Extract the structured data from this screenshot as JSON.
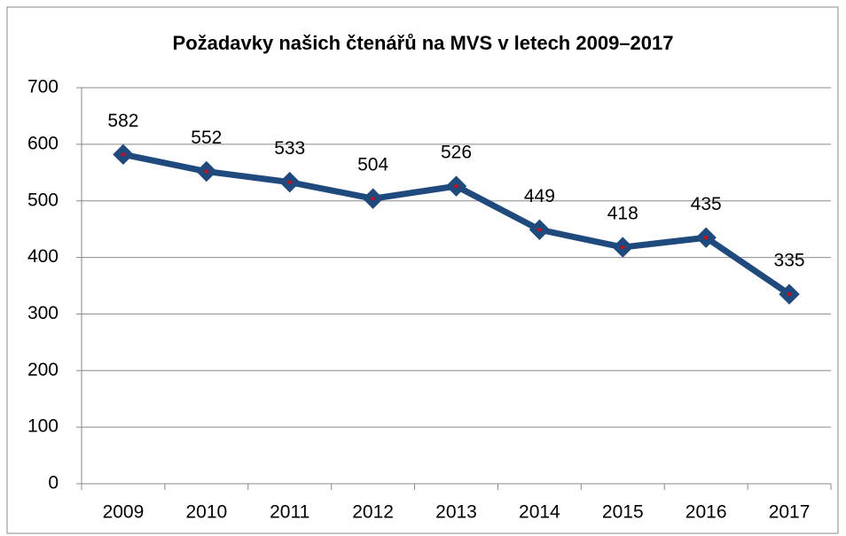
{
  "chart_data": {
    "type": "line",
    "title": "Požadavky našich čtenářů na MVS v letech 2009–2017",
    "categories": [
      "2009",
      "2010",
      "2011",
      "2012",
      "2013",
      "2014",
      "2015",
      "2016",
      "2017"
    ],
    "series": [
      {
        "name": "MVS",
        "color": "#1f4a7e",
        "values": [
          582,
          552,
          533,
          504,
          526,
          449,
          418,
          435,
          335
        ]
      }
    ],
    "ylim": [
      0,
      700
    ],
    "yticks": [
      0,
      100,
      200,
      300,
      400,
      500,
      600,
      700
    ],
    "grid": true,
    "legend": false
  }
}
